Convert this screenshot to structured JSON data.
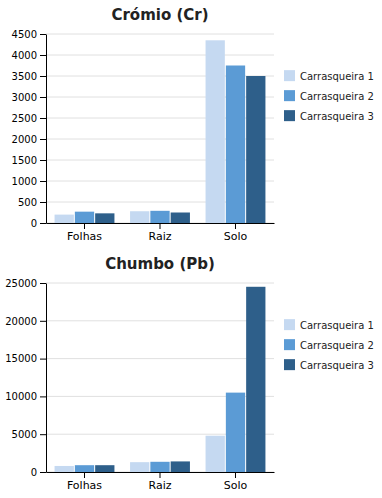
{
  "chart_data": [
    {
      "type": "bar",
      "title": "Crómio (Cr)",
      "categories": [
        "Folhas",
        "Raiz",
        "Solo"
      ],
      "series": [
        {
          "name": "Carrasqueira 1",
          "color": "#c5d9f1",
          "values": [
            200,
            280,
            4350
          ]
        },
        {
          "name": "Carrasqueira 2",
          "color": "#5b9bd5",
          "values": [
            270,
            290,
            3750
          ]
        },
        {
          "name": "Carrasqueira 3",
          "color": "#2e5f8a",
          "values": [
            230,
            250,
            3500
          ]
        }
      ],
      "ylim": [
        0,
        4500
      ],
      "yticks": [
        0,
        500,
        1000,
        1500,
        2000,
        2500,
        3000,
        3500,
        4000,
        4500
      ],
      "grid": true,
      "legend": "right"
    },
    {
      "type": "bar",
      "title": "Chumbo (Pb)",
      "categories": [
        "Folhas",
        "Raiz",
        "Solo"
      ],
      "series": [
        {
          "name": "Carrasqueira 1",
          "color": "#c5d9f1",
          "values": [
            800,
            1300,
            4800
          ]
        },
        {
          "name": "Carrasqueira 2",
          "color": "#5b9bd5",
          "values": [
            900,
            1350,
            10500
          ]
        },
        {
          "name": "Carrasqueira 3",
          "color": "#2e5f8a",
          "values": [
            900,
            1400,
            24500
          ]
        }
      ],
      "ylim": [
        0,
        25000
      ],
      "yticks": [
        0,
        5000,
        10000,
        15000,
        20000,
        25000
      ],
      "grid": true,
      "legend": "right"
    }
  ]
}
